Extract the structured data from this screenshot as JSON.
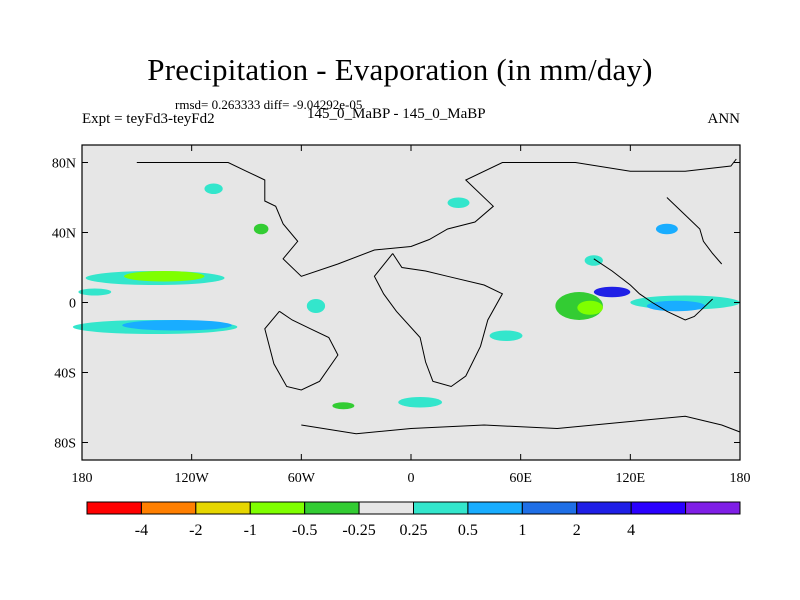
{
  "title": "Precipitation - Evaporation (in mm/day)",
  "stats_line": "rmsd= 0.263333 diff= -9.04292e-05",
  "left_string": "Expt = teyFd3-teyFd2",
  "center_string": "145_0_MaBP - 145_0_MaBP",
  "right_string": "ANN",
  "map": {
    "projection": "cylindrical equidistant",
    "lon_range": [
      -180,
      180
    ],
    "lat_range": [
      -90,
      90
    ],
    "lat_ticks": [
      {
        "value": 80,
        "label": "80N"
      },
      {
        "value": 40,
        "label": "40N"
      },
      {
        "value": 0,
        "label": "0"
      },
      {
        "value": -40,
        "label": "40S"
      },
      {
        "value": -80,
        "label": "80S"
      }
    ],
    "lon_ticks": [
      {
        "value": -180,
        "label": "180"
      },
      {
        "value": -120,
        "label": "120W"
      },
      {
        "value": -60,
        "label": "60W"
      },
      {
        "value": 0,
        "label": "0"
      },
      {
        "value": 60,
        "label": "60E"
      },
      {
        "value": 120,
        "label": "120E"
      },
      {
        "value": 180,
        "label": "180"
      }
    ],
    "background_color": "#e6e6e6"
  },
  "colorbar": {
    "colors": [
      "#ff0000",
      "#ff7f00",
      "#e6d600",
      "#7fff00",
      "#33cc33",
      "#e6e6e6",
      "#33e6cc",
      "#19adff",
      "#1f6fe6",
      "#1f1fe6",
      "#2a00ff",
      "#7f1fe6"
    ],
    "labels": [
      "-4",
      "-2",
      "-1",
      "-0.5",
      "-0.25",
      "0.25",
      "0.5",
      "1",
      "2",
      "4"
    ]
  },
  "anomalies": [
    {
      "name": "atlantic-north-itcz-band",
      "lon": -140,
      "lat": 14,
      "rx": 38,
      "ry": 4,
      "color": "#33e6cc"
    },
    {
      "name": "atlantic-north-itcz-core",
      "lon": -135,
      "lat": 15,
      "rx": 22,
      "ry": 3,
      "color": "#7fff00"
    },
    {
      "name": "pacific-south-band",
      "lon": -140,
      "lat": -14,
      "rx": 45,
      "ry": 4,
      "color": "#33e6cc"
    },
    {
      "name": "pacific-south-band-core",
      "lon": -128,
      "lat": -13,
      "rx": 30,
      "ry": 3,
      "color": "#19adff"
    },
    {
      "name": "equatorial-west-strip",
      "lon": -173,
      "lat": 6,
      "rx": 9,
      "ry": 2,
      "color": "#33e6cc"
    },
    {
      "name": "south-america-west",
      "lon": -52,
      "lat": -2,
      "rx": 5,
      "ry": 4,
      "color": "#33e6cc"
    },
    {
      "name": "africa-east",
      "lon": 52,
      "lat": -19,
      "rx": 9,
      "ry": 3,
      "color": "#33e6cc"
    },
    {
      "name": "indian-ocean-west",
      "lon": 92,
      "lat": -2,
      "rx": 13,
      "ry": 8,
      "color": "#33cc33"
    },
    {
      "name": "indian-ocean-core",
      "lon": 98,
      "lat": -3,
      "rx": 7,
      "ry": 4,
      "color": "#7fff00"
    },
    {
      "name": "warm-pool-band",
      "lon": 150,
      "lat": 0,
      "rx": 30,
      "ry": 4,
      "color": "#33e6cc"
    },
    {
      "name": "warm-pool-core",
      "lon": 145,
      "lat": -2,
      "rx": 16,
      "ry": 3,
      "color": "#19adff"
    },
    {
      "name": "maritime-continent",
      "lon": 110,
      "lat": 6,
      "rx": 10,
      "ry": 3,
      "color": "#1f1fe6"
    },
    {
      "name": "southern-ocean-atlantic",
      "lon": 5,
      "lat": -57,
      "rx": 12,
      "ry": 3,
      "color": "#33e6cc"
    },
    {
      "name": "southern-ocean-south-america",
      "lon": -37,
      "lat": -59,
      "rx": 6,
      "ry": 2,
      "color": "#33cc33"
    },
    {
      "name": "north-pacific-patch",
      "lon": 140,
      "lat": 42,
      "rx": 6,
      "ry": 3,
      "color": "#19adff"
    },
    {
      "name": "arctic-patch",
      "lon": -108,
      "lat": 65,
      "rx": 5,
      "ry": 3,
      "color": "#33e6cc"
    },
    {
      "name": "north-america-patch",
      "lon": -82,
      "lat": 42,
      "rx": 4,
      "ry": 3,
      "color": "#33cc33"
    },
    {
      "name": "eurasia-patch",
      "lon": 26,
      "lat": 57,
      "rx": 6,
      "ry": 3,
      "color": "#33e6cc"
    },
    {
      "name": "tibet-patch",
      "lon": 100,
      "lat": 24,
      "rx": 5,
      "ry": 3,
      "color": "#33e6cc"
    }
  ],
  "coastlines": [
    [
      [
        -150,
        80
      ],
      [
        -100,
        80
      ],
      [
        -90,
        75
      ],
      [
        -80,
        70
      ],
      [
        -80,
        58
      ],
      [
        -74,
        55
      ],
      [
        -70,
        45
      ],
      [
        -62,
        35
      ],
      [
        -70,
        25
      ],
      [
        -60,
        15
      ],
      [
        -40,
        22
      ],
      [
        -20,
        30
      ],
      [
        0,
        32
      ],
      [
        10,
        36
      ],
      [
        20,
        42
      ],
      [
        35,
        46
      ],
      [
        45,
        55
      ],
      [
        30,
        70
      ],
      [
        50,
        80
      ],
      [
        90,
        80
      ],
      [
        120,
        75
      ],
      [
        150,
        75
      ],
      [
        175,
        78
      ],
      [
        178,
        82
      ]
    ],
    [
      [
        -10,
        28
      ],
      [
        -5,
        20
      ],
      [
        8,
        18
      ],
      [
        20,
        15
      ],
      [
        40,
        10
      ],
      [
        50,
        5
      ],
      [
        42,
        -10
      ],
      [
        38,
        -25
      ],
      [
        30,
        -42
      ],
      [
        22,
        -48
      ],
      [
        12,
        -45
      ],
      [
        8,
        -34
      ],
      [
        5,
        -20
      ],
      [
        -8,
        -5
      ],
      [
        -15,
        5
      ],
      [
        -20,
        15
      ],
      [
        -10,
        28
      ]
    ],
    [
      [
        -72,
        -5
      ],
      [
        -65,
        -10
      ],
      [
        -55,
        -15
      ],
      [
        -45,
        -20
      ],
      [
        -40,
        -30
      ],
      [
        -50,
        -45
      ],
      [
        -60,
        -50
      ],
      [
        -68,
        -48
      ],
      [
        -75,
        -35
      ],
      [
        -80,
        -15
      ],
      [
        -72,
        -5
      ]
    ],
    [
      [
        100,
        25
      ],
      [
        110,
        18
      ],
      [
        120,
        10
      ],
      [
        125,
        5
      ],
      [
        132,
        0
      ],
      [
        140,
        -5
      ],
      [
        150,
        -10
      ],
      [
        155,
        -8
      ],
      [
        160,
        -3
      ],
      [
        165,
        2
      ]
    ],
    [
      [
        140,
        60
      ],
      [
        150,
        50
      ],
      [
        158,
        42
      ],
      [
        160,
        35
      ],
      [
        165,
        28
      ],
      [
        170,
        22
      ]
    ],
    [
      [
        -60,
        -70
      ],
      [
        -30,
        -75
      ],
      [
        0,
        -72
      ],
      [
        40,
        -70
      ],
      [
        80,
        -72
      ],
      [
        120,
        -68
      ],
      [
        150,
        -65
      ],
      [
        170,
        -70
      ],
      [
        180,
        -74
      ]
    ]
  ]
}
